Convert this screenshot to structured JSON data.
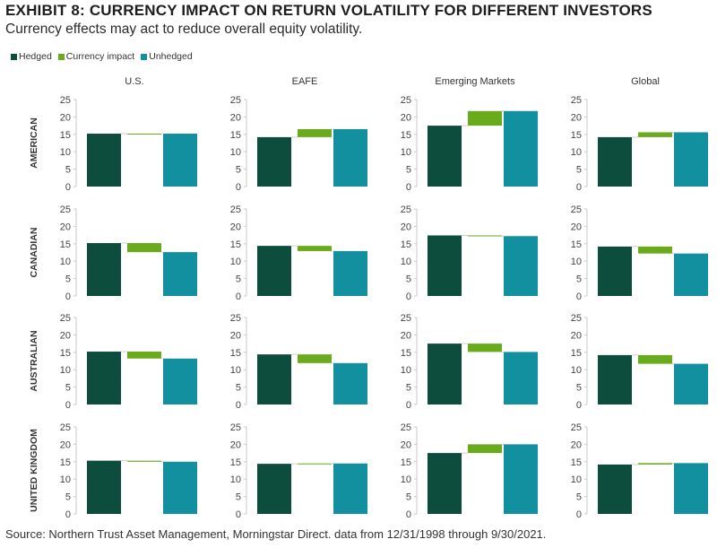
{
  "title": "EXHIBIT 8: CURRENCY IMPACT ON RETURN VOLATILITY FOR DIFFERENT INVESTORS",
  "subtitle": "Currency effects may act to reduce overall equity volatility.",
  "source": "Source: Northern Trust Asset Management, Morningstar Direct. data from 12/31/1998 through 9/30/2021.",
  "legend": [
    {
      "label": "Hedged",
      "color": "#0d4d3d"
    },
    {
      "label": "Currency impact",
      "color": "#6aab1e"
    },
    {
      "label": "Unhedged",
      "color": "#1390a0"
    }
  ],
  "chart_data": {
    "type": "bar",
    "subtype": "waterfall-small-multiples",
    "columns": [
      "U.S.",
      "EAFE",
      "Emerging Markets",
      "Global"
    ],
    "rows": [
      "AMERICAN",
      "CANADIAN",
      "AUSTRALIAN",
      "UNITED KINGDOM"
    ],
    "categories": [
      "Hedged",
      "Currency impact",
      "Unhedged"
    ],
    "ylim": [
      0,
      25
    ],
    "yticks": [
      0,
      5,
      10,
      15,
      20,
      25
    ],
    "panels": [
      [
        {
          "hedged": 15.2,
          "unhedged": 15.2
        },
        {
          "hedged": 14.2,
          "unhedged": 16.5
        },
        {
          "hedged": 17.5,
          "unhedged": 21.7
        },
        {
          "hedged": 14.2,
          "unhedged": 15.6
        }
      ],
      [
        {
          "hedged": 15.2,
          "unhedged": 12.6
        },
        {
          "hedged": 14.4,
          "unhedged": 12.9
        },
        {
          "hedged": 17.4,
          "unhedged": 17.2
        },
        {
          "hedged": 14.2,
          "unhedged": 12.2
        }
      ],
      [
        {
          "hedged": 15.2,
          "unhedged": 13.2
        },
        {
          "hedged": 14.4,
          "unhedged": 11.9
        },
        {
          "hedged": 17.5,
          "unhedged": 15.1
        },
        {
          "hedged": 14.2,
          "unhedged": 11.7
        }
      ],
      [
        {
          "hedged": 15.3,
          "unhedged": 15.0
        },
        {
          "hedged": 14.4,
          "unhedged": 14.5
        },
        {
          "hedged": 17.5,
          "unhedged": 20.0
        },
        {
          "hedged": 14.2,
          "unhedged": 14.6
        }
      ]
    ]
  }
}
